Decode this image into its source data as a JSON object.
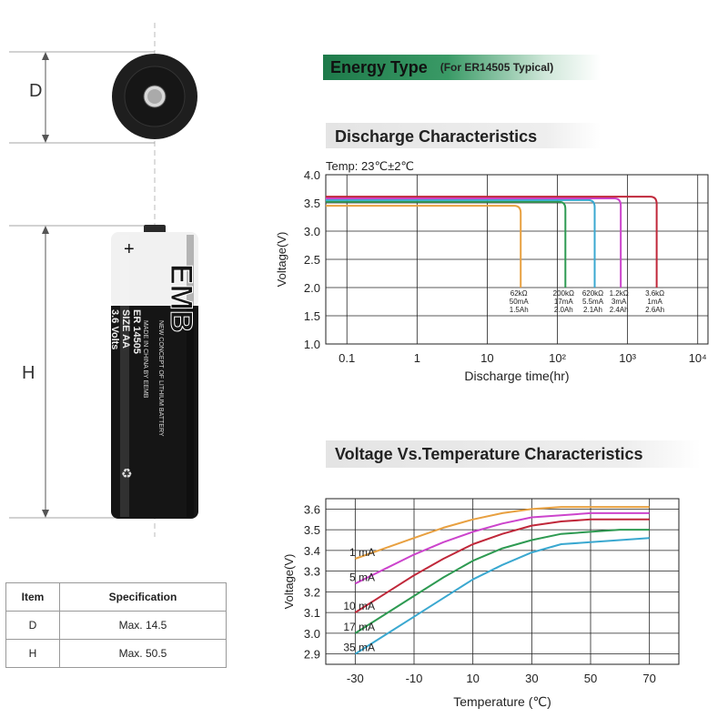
{
  "energy": {
    "title": "Energy Type",
    "subtitle": "(For ER14505 Typical)"
  },
  "battery": {
    "d_label": "D",
    "h_label": "H",
    "brand": "EMB",
    "label_lines": [
      "MADE IN CHINA BY EEMB",
      "NEW CONCEPT OF LITHIUM BATTERY",
      "ER 14505",
      "SIZE AA",
      "3.6 Volts"
    ],
    "plus_sign": "+"
  },
  "spec_table": {
    "headers": [
      "Item",
      "Specification"
    ],
    "rows": [
      [
        "D",
        "Max. 14.5"
      ],
      [
        "H",
        "Max. 50.5"
      ]
    ]
  },
  "chart_data": [
    {
      "type": "line",
      "title": "Discharge Characteristics",
      "annotation": "Temp: 23℃±2℃",
      "xlabel": "Discharge time(hr)",
      "ylabel": "Voltage(V)",
      "xscale": "log",
      "xlim": [
        0.05,
        14000
      ],
      "ylim": [
        1.0,
        4.0
      ],
      "yticks": [
        "1.0",
        "1.5",
        "2.0",
        "2.5",
        "3.0",
        "3.5",
        "4.0"
      ],
      "xticks": [
        "0.1",
        "1",
        "10",
        "10²",
        "10³",
        "10⁴"
      ],
      "xtick_values": [
        0.1,
        1,
        10,
        100,
        1000,
        10000
      ],
      "grid": true,
      "series": [
        {
          "name": "62kΩ 50mA 1.5Ah",
          "load": "62kΩ",
          "current": "50mA",
          "capacity": "1.5Ah",
          "color": "#e8a040",
          "voltage": 3.45,
          "end_time": 30
        },
        {
          "name": "200kΩ 17mA 2.0Ah",
          "load": "200kΩ",
          "current": "17mA",
          "capacity": "2.0Ah",
          "color": "#2e9a52",
          "voltage": 3.52,
          "end_time": 130
        },
        {
          "name": "620kΩ 5.5mA 2.1Ah",
          "load": "620kΩ",
          "current": "5.5mA",
          "capacity": "2.1Ah",
          "color": "#3aa8d0",
          "voltage": 3.55,
          "end_time": 340
        },
        {
          "name": "1.2kΩ 3mA 2.4Ah",
          "load": "1.2kΩ",
          "current": "3mA",
          "capacity": "2.4Ah",
          "color": "#cc44cc",
          "voltage": 3.58,
          "end_time": 800
        },
        {
          "name": "3.6kΩ 1mA 2.6Ah",
          "load": "3.6kΩ",
          "current": "1mA",
          "capacity": "2.6Ah",
          "color": "#c0283a",
          "voltage": 3.61,
          "end_time": 2600
        }
      ]
    },
    {
      "type": "line",
      "title": "Voltage Vs.Temperature Characteristics",
      "xlabel": "Temperature (℃)",
      "ylabel": "Voltage(V)",
      "xlim": [
        -40,
        80
      ],
      "ylim": [
        2.85,
        3.65
      ],
      "xticks": [
        -30,
        -10,
        10,
        30,
        50,
        70
      ],
      "yticks": [
        "2.9",
        "3.0",
        "3.1",
        "3.2",
        "3.3",
        "3.4",
        "3.5",
        "3.6"
      ],
      "grid": true,
      "x": [
        -30,
        -20,
        -10,
        0,
        10,
        20,
        30,
        40,
        50,
        60,
        70
      ],
      "series": [
        {
          "name": "1 mA",
          "color": "#e8a040",
          "values": [
            3.36,
            3.41,
            3.46,
            3.51,
            3.55,
            3.58,
            3.6,
            3.61,
            3.61,
            3.61,
            3.61
          ]
        },
        {
          "name": "5 mA",
          "color": "#cc44cc",
          "values": [
            3.24,
            3.31,
            3.38,
            3.44,
            3.49,
            3.53,
            3.56,
            3.57,
            3.58,
            3.58,
            3.58
          ]
        },
        {
          "name": "10 mA",
          "color": "#c0283a",
          "values": [
            3.1,
            3.19,
            3.28,
            3.36,
            3.43,
            3.48,
            3.52,
            3.54,
            3.55,
            3.55,
            3.55
          ]
        },
        {
          "name": "17 mA",
          "color": "#2e9a52",
          "values": [
            3.0,
            3.09,
            3.18,
            3.27,
            3.35,
            3.41,
            3.45,
            3.48,
            3.49,
            3.5,
            3.5
          ]
        },
        {
          "name": "35 mA",
          "color": "#3aa8d0",
          "values": [
            2.9,
            2.99,
            3.08,
            3.17,
            3.26,
            3.33,
            3.39,
            3.43,
            3.44,
            3.45,
            3.46
          ]
        }
      ]
    }
  ]
}
